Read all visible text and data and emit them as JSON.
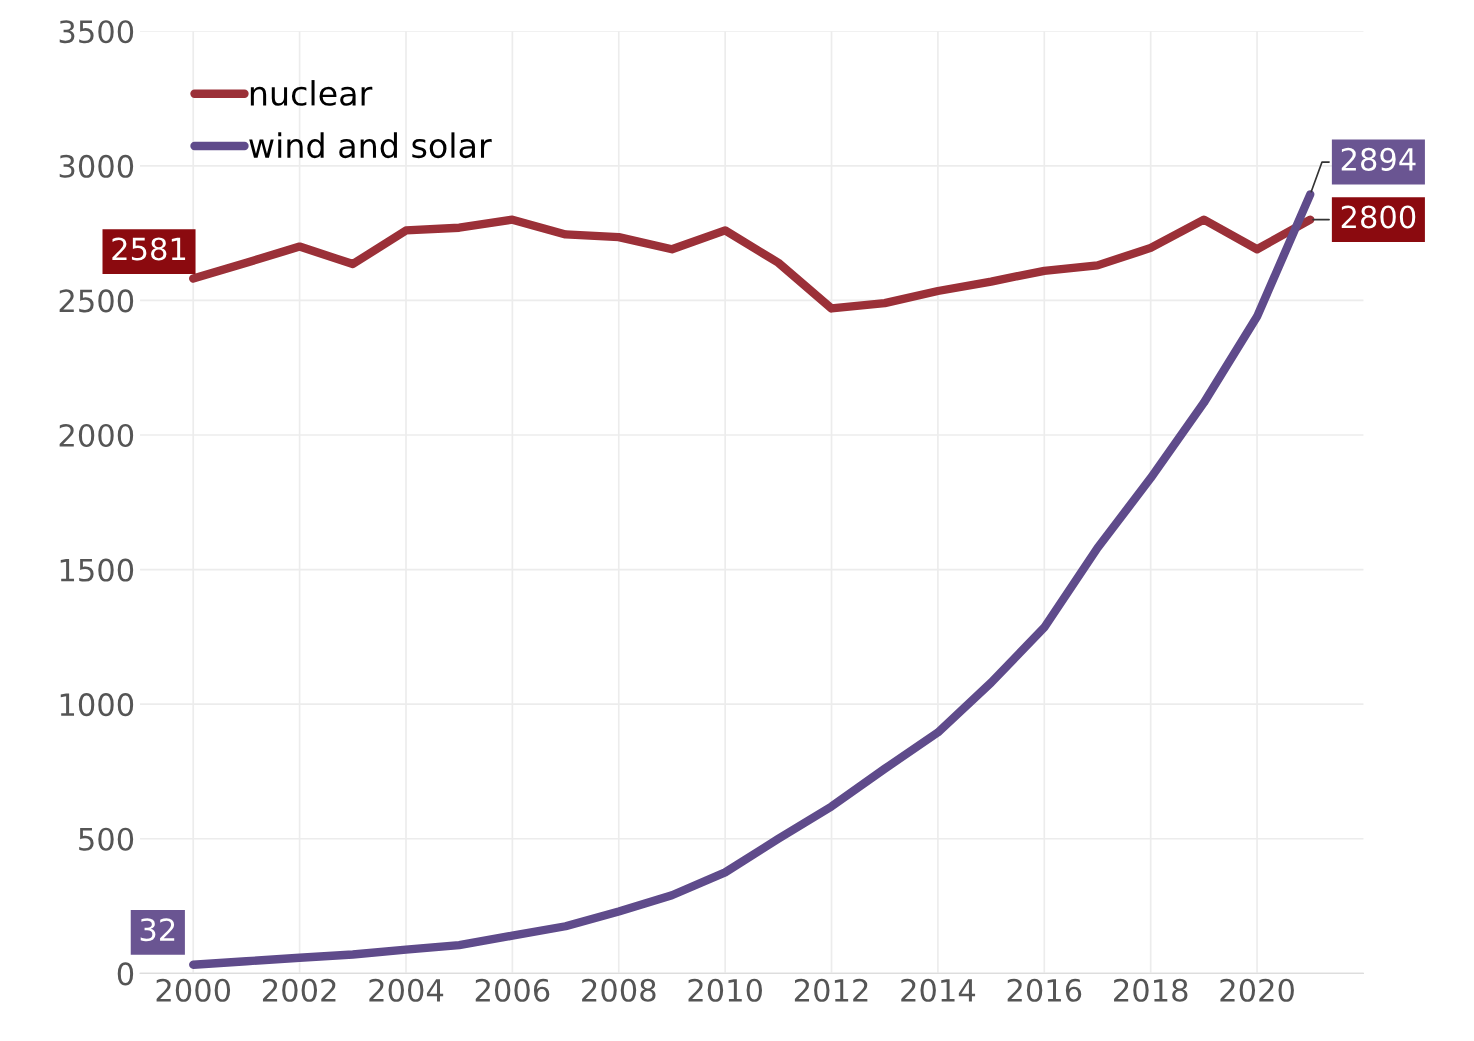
{
  "chart_data": {
    "type": "line",
    "x": [
      2000,
      2001,
      2002,
      2003,
      2004,
      2005,
      2006,
      2007,
      2008,
      2009,
      2010,
      2011,
      2012,
      2013,
      2014,
      2015,
      2016,
      2017,
      2018,
      2019,
      2020,
      2021
    ],
    "series": [
      {
        "name": "nuclear",
        "color": "#9b3038",
        "values": [
          2581,
          2640,
          2700,
          2635,
          2760,
          2770,
          2800,
          2745,
          2735,
          2690,
          2760,
          2640,
          2470,
          2490,
          2535,
          2570,
          2610,
          2630,
          2695,
          2800,
          2690,
          2800
        ],
        "value_labels": [
          "2581",
          null,
          null,
          null,
          null,
          null,
          null,
          null,
          null,
          null,
          null,
          null,
          null,
          null,
          null,
          null,
          null,
          null,
          null,
          null,
          null,
          "2800"
        ]
      },
      {
        "name": "wind and solar",
        "color": "#5f4b8b",
        "values": [
          32,
          45,
          58,
          70,
          88,
          105,
          140,
          175,
          230,
          290,
          375,
          500,
          620,
          760,
          895,
          1080,
          1285,
          1580,
          1840,
          2120,
          2440,
          2894
        ],
        "value_labels": [
          "32",
          null,
          null,
          null,
          null,
          null,
          null,
          null,
          null,
          null,
          null,
          null,
          null,
          null,
          null,
          null,
          null,
          null,
          null,
          null,
          null,
          "2894"
        ]
      }
    ],
    "xlim": [
      1999,
      2022
    ],
    "xticks": [
      2000,
      2002,
      2004,
      2006,
      2008,
      2010,
      2012,
      2014,
      2016,
      2018,
      2020
    ],
    "ylim": [
      0,
      3500
    ],
    "yticks": [
      0,
      500,
      1000,
      1500,
      2000,
      2500,
      3000,
      3500
    ],
    "grid": true,
    "legend": "top left",
    "marker": "none",
    "line_style": "solid"
  }
}
